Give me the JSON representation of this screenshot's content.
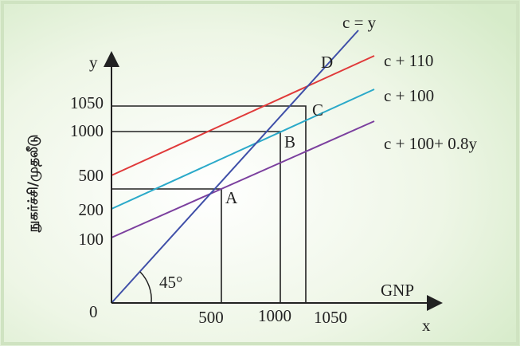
{
  "axes": {
    "y_label": "y",
    "x_label": "x",
    "x_title": "GNP",
    "y_title": "நுகர்ச்சி/முதலீடு",
    "origin": "0"
  },
  "y_ticks": [
    "1050",
    "1000",
    "500",
    "200",
    "100"
  ],
  "x_ticks": [
    "500",
    "1000",
    "1050"
  ],
  "lines": [
    {
      "label": "c = y"
    },
    {
      "label": "c + 110"
    },
    {
      "label": "c + 100"
    },
    {
      "label": "c + 100+ 0.8y"
    }
  ],
  "points": [
    "A",
    "B",
    "C",
    "D"
  ],
  "angle": "45°"
}
